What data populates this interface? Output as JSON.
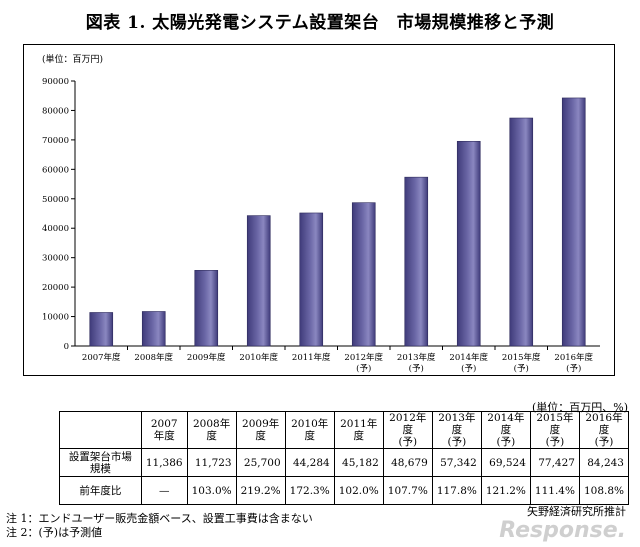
{
  "title": "図表 1.  太陽光発電システム設置架台　市場規模推移と予測",
  "chart_data": {
    "type": "bar",
    "unit_label": "(単位：百万円)",
    "categories": [
      [
        "2007年度"
      ],
      [
        "2008年度"
      ],
      [
        "2009年度"
      ],
      [
        "2010年度"
      ],
      [
        "2011年度"
      ],
      [
        "2012年度",
        "(予)"
      ],
      [
        "2013年度",
        "(予)"
      ],
      [
        "2014年度",
        "(予)"
      ],
      [
        "2015年度",
        "(予)"
      ],
      [
        "2016年度",
        "(予)"
      ]
    ],
    "values": [
      11386,
      11723,
      25700,
      44284,
      45182,
      48679,
      57342,
      69524,
      77427,
      84243
    ],
    "ylim": [
      0,
      90000
    ],
    "yticks": [
      0,
      10000,
      20000,
      30000,
      40000,
      50000,
      60000,
      70000,
      80000,
      90000
    ],
    "ytick_labels": [
      "0",
      "10000",
      "20000",
      "30000",
      "40000",
      "50000",
      "60000",
      "70000",
      "80000",
      "90000"
    ],
    "bar_color": "#6b67a6",
    "grid": false
  },
  "table": {
    "unit": "(単位：百万円、%)",
    "headers": [
      [
        "2007年度"
      ],
      [
        "2008年度"
      ],
      [
        "2009年度"
      ],
      [
        "2010年度"
      ],
      [
        "2011年度"
      ],
      [
        "2012年度",
        "(予)"
      ],
      [
        "2013年度",
        "(予)"
      ],
      [
        "2014年度",
        "(予)"
      ],
      [
        "2015年度",
        "(予)"
      ],
      [
        "2016年度",
        "(予)"
      ]
    ],
    "rows": [
      {
        "label": "設置架台市場規模",
        "cells": [
          "11,386",
          "11,723",
          "25,700",
          "44,284",
          "45,182",
          "48,679",
          "57,342",
          "69,524",
          "77,427",
          "84,243"
        ]
      },
      {
        "label": "前年度比",
        "cells": [
          "—",
          "103.0%",
          "219.2%",
          "172.3%",
          "102.0%",
          "107.7%",
          "117.8%",
          "121.2%",
          "111.4%",
          "108.8%"
        ]
      }
    ]
  },
  "source": "矢野経済研究所推計",
  "notes": [
    "注 1：エンドユーザー販売金額ベース、設置工事費は含まない",
    "注 2：(予)は予測値"
  ],
  "watermark": "Response."
}
